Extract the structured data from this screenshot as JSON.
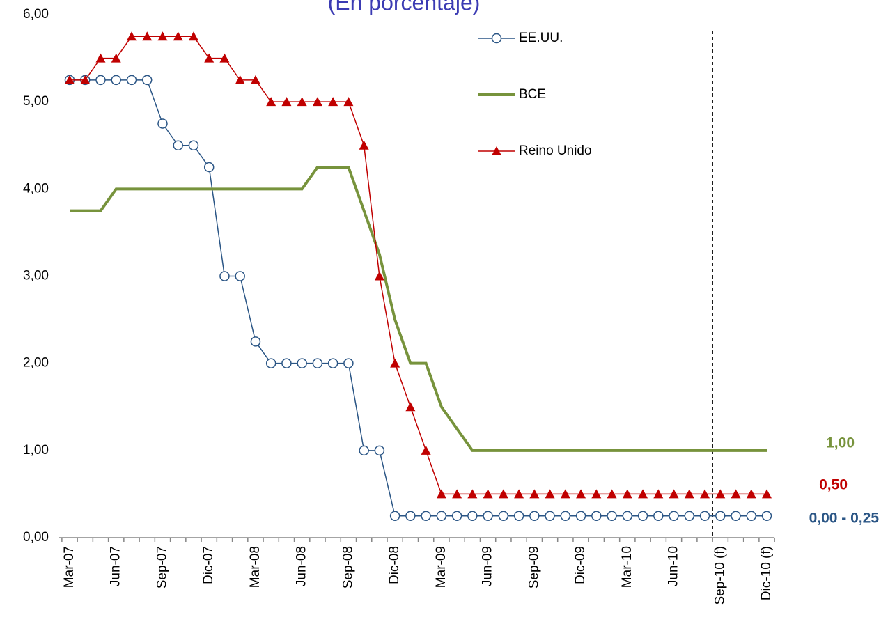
{
  "chart_data": {
    "type": "line",
    "subtitle": "(En porcentaje)",
    "categories": [
      "Mar-07",
      null,
      null,
      "Jun-07",
      null,
      null,
      "Sep-07",
      null,
      null,
      "Dic-07",
      null,
      null,
      "Mar-08",
      null,
      null,
      "Jun-08",
      null,
      null,
      "Sep-08",
      null,
      null,
      "Dic-08",
      null,
      null,
      "Mar-09",
      null,
      null,
      "Jun-09",
      null,
      null,
      "Sep-09",
      null,
      null,
      "Dic-09",
      null,
      null,
      "Mar-10",
      null,
      null,
      "Jun-10",
      null,
      null,
      "Sep-10 (f)",
      null,
      null,
      "Dic-10 (f)"
    ],
    "series": [
      {
        "name": "EE.UU.",
        "color": "#2a5585",
        "marker": "circle",
        "line_width": 1.5,
        "values": [
          5.25,
          5.25,
          5.25,
          5.25,
          5.25,
          5.25,
          4.75,
          4.5,
          4.5,
          4.25,
          3.0,
          3.0,
          2.25,
          2.0,
          2.0,
          2.0,
          2.0,
          2.0,
          2.0,
          1.0,
          1.0,
          0.25,
          0.25,
          0.25,
          0.25,
          0.25,
          0.25,
          0.25,
          0.25,
          0.25,
          0.25,
          0.25,
          0.25,
          0.25,
          0.25,
          0.25,
          0.25,
          0.25,
          0.25,
          0.25,
          0.25,
          0.25,
          0.25,
          0.25,
          0.25,
          0.25
        ]
      },
      {
        "name": "BCE",
        "color": "#77933c",
        "marker": "none",
        "line_width": 4,
        "values": [
          3.75,
          3.75,
          3.75,
          4.0,
          4.0,
          4.0,
          4.0,
          4.0,
          4.0,
          4.0,
          4.0,
          4.0,
          4.0,
          4.0,
          4.0,
          4.0,
          4.25,
          4.25,
          4.25,
          3.75,
          3.25,
          2.5,
          2.0,
          2.0,
          1.5,
          1.25,
          1.0,
          1.0,
          1.0,
          1.0,
          1.0,
          1.0,
          1.0,
          1.0,
          1.0,
          1.0,
          1.0,
          1.0,
          1.0,
          1.0,
          1.0,
          1.0,
          1.0,
          1.0,
          1.0,
          1.0
        ]
      },
      {
        "name": "Reino Unido",
        "color": "#c00000",
        "marker": "triangle",
        "line_width": 1.5,
        "values": [
          5.25,
          5.25,
          5.5,
          5.5,
          5.75,
          5.75,
          5.75,
          5.75,
          5.75,
          5.5,
          5.5,
          5.25,
          5.25,
          5.0,
          5.0,
          5.0,
          5.0,
          5.0,
          5.0,
          4.5,
          3.0,
          2.0,
          1.5,
          1.0,
          0.5,
          0.5,
          0.5,
          0.5,
          0.5,
          0.5,
          0.5,
          0.5,
          0.5,
          0.5,
          0.5,
          0.5,
          0.5,
          0.5,
          0.5,
          0.5,
          0.5,
          0.5,
          0.5,
          0.5,
          0.5,
          0.5
        ]
      }
    ],
    "ylim": [
      0,
      6
    ],
    "yticks": [
      {
        "value": 0,
        "label": "0,00"
      },
      {
        "value": 1,
        "label": "1,00"
      },
      {
        "value": 2,
        "label": "2,00"
      },
      {
        "value": 3,
        "label": "3,00"
      },
      {
        "value": 4,
        "label": "4,00"
      },
      {
        "value": 5,
        "label": "5,00"
      },
      {
        "value": 6,
        "label": "6,00"
      }
    ],
    "annotations": [
      {
        "text": "1,00",
        "color": "#77933c"
      },
      {
        "text": "0,50",
        "color": "#c00000"
      },
      {
        "text": "0,00 - 0,25",
        "color": "#2a5585"
      }
    ]
  }
}
